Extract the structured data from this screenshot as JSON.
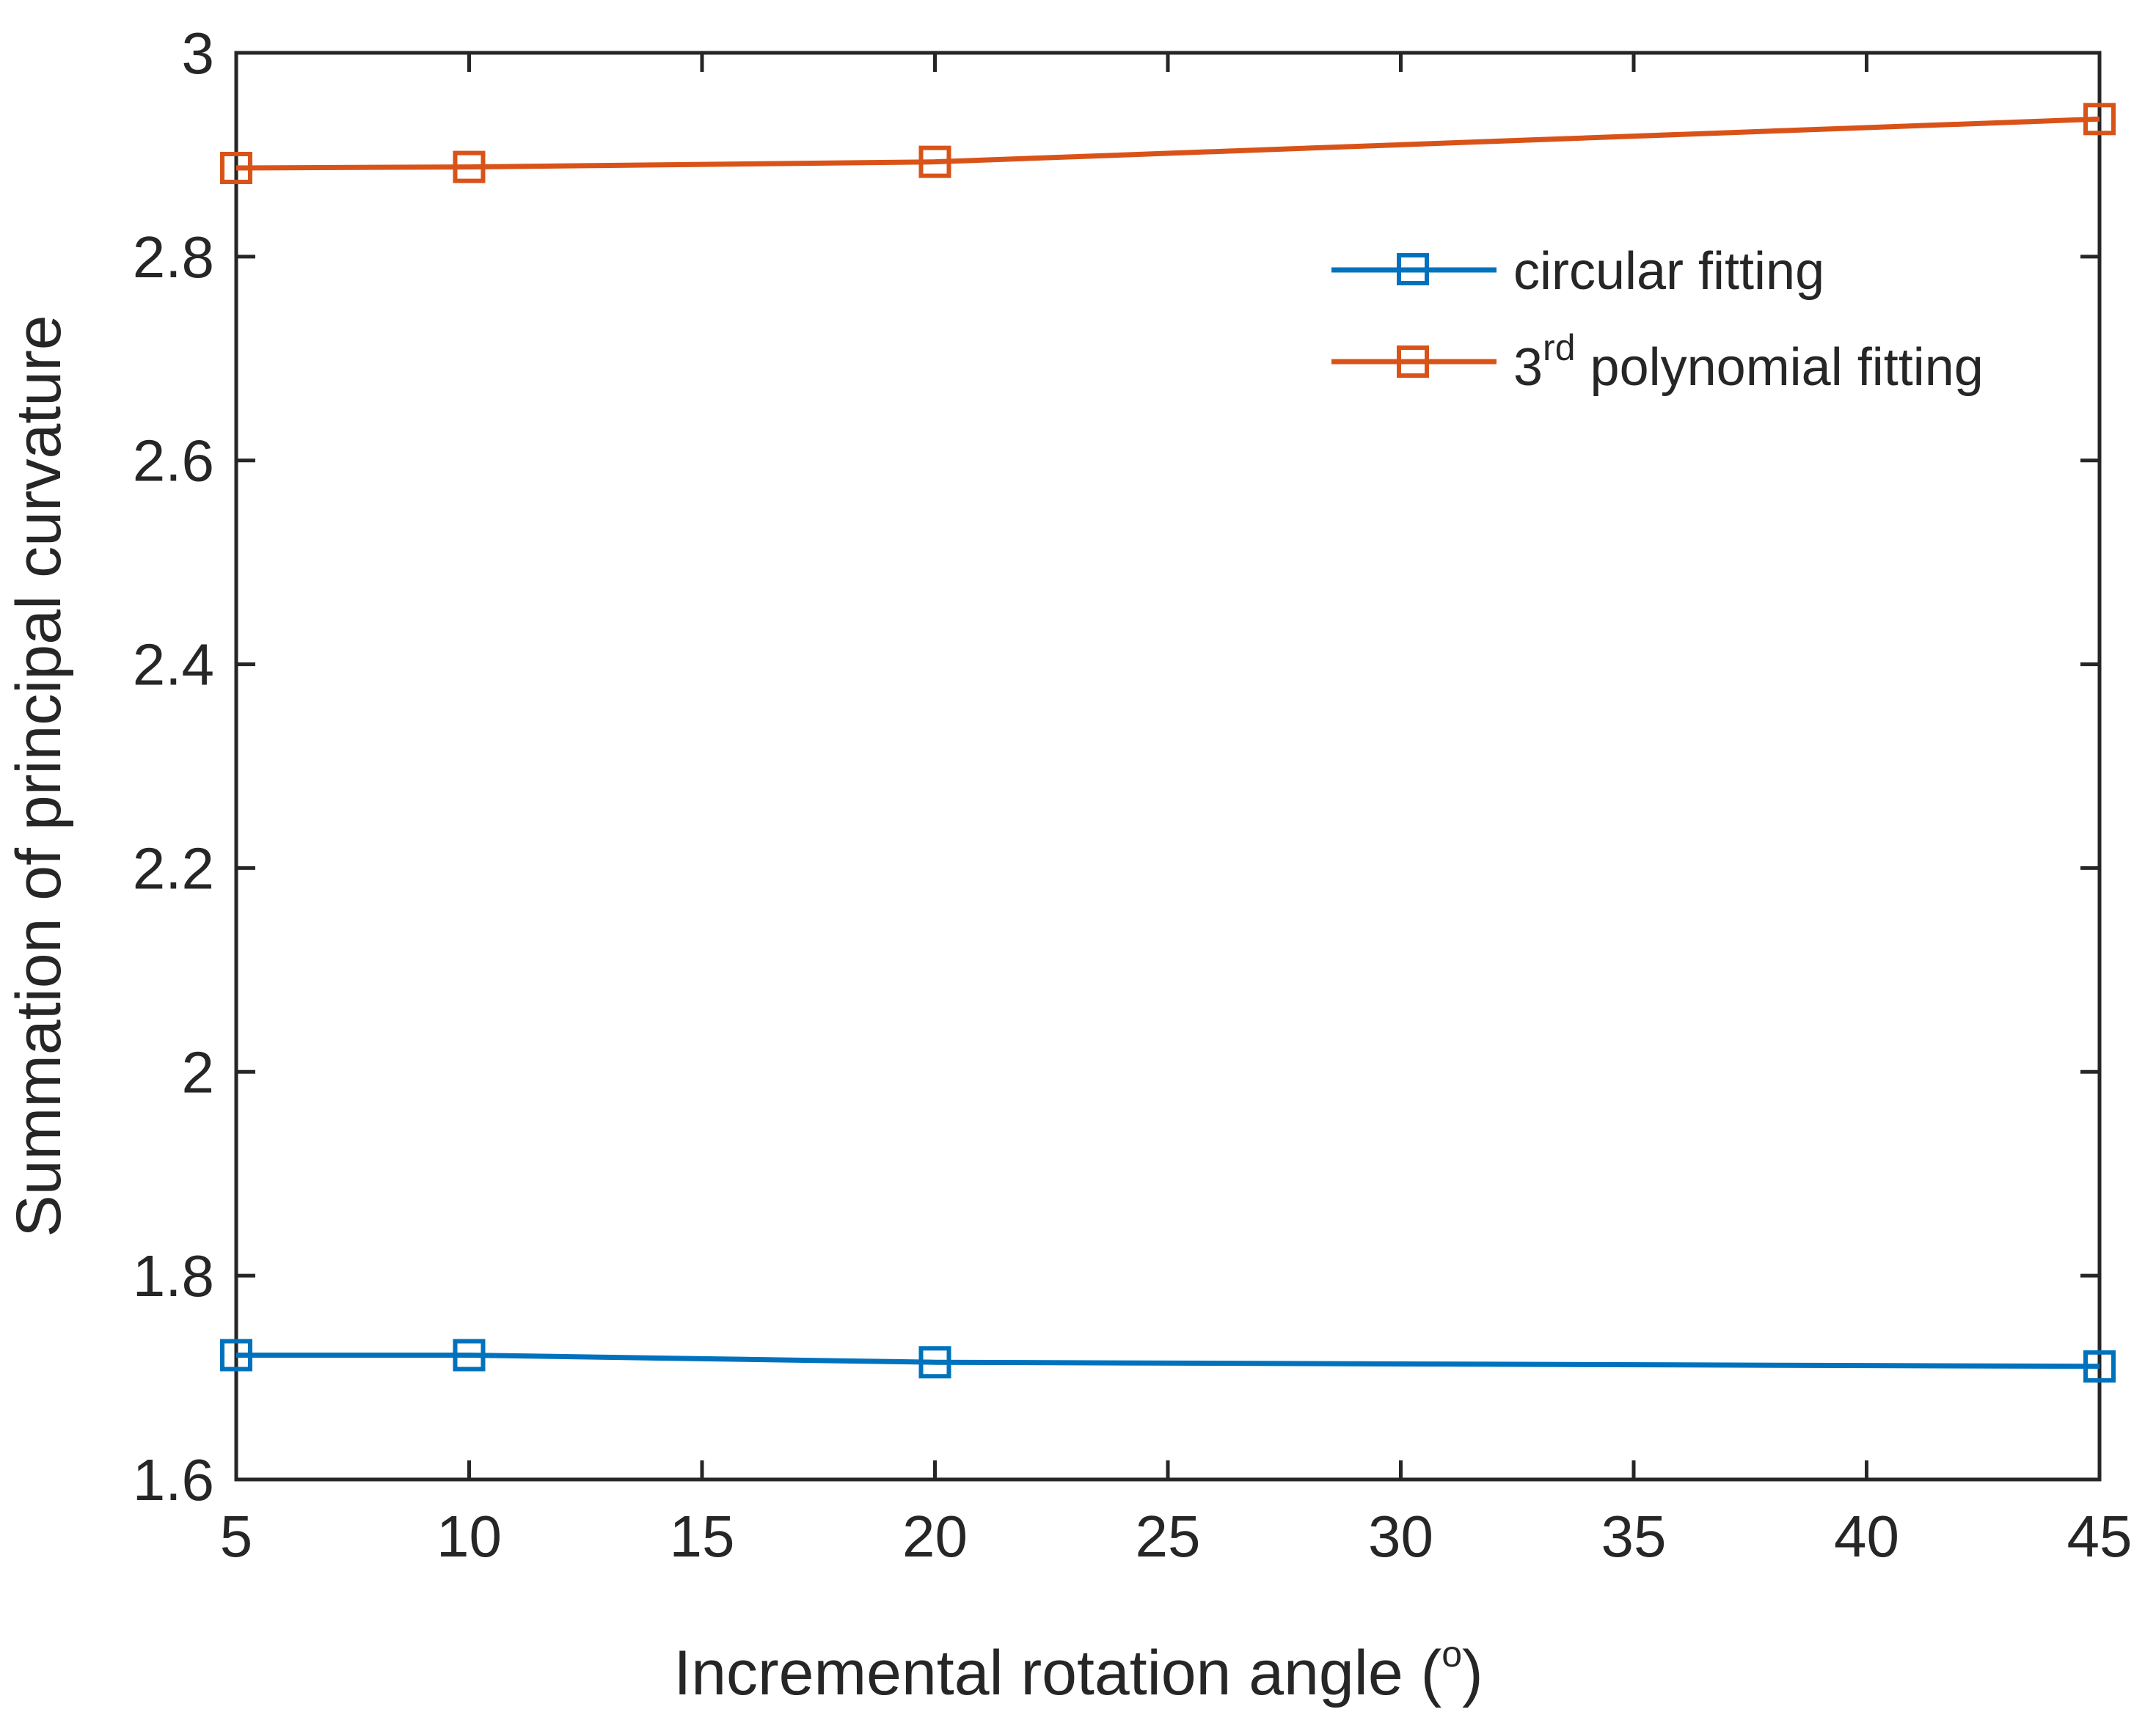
{
  "chart_data": {
    "type": "line",
    "title": "",
    "xlabel": "Incremental rotation angle (",
    "xlabel_sup": "o",
    "xlabel_end": ")",
    "ylabel": "Summation of principal curvature",
    "xlim": [
      5,
      45
    ],
    "ylim": [
      1.6,
      3.0
    ],
    "xticks": [
      5,
      10,
      15,
      20,
      25,
      30,
      35,
      40,
      45
    ],
    "xtick_labels": [
      "5",
      "10",
      "15",
      "20",
      "25",
      "30",
      "35",
      "40",
      "45"
    ],
    "yticks": [
      1.6,
      1.8,
      2.0,
      2.2,
      2.4,
      2.6,
      2.8,
      3.0
    ],
    "ytick_labels": [
      "1.6",
      "1.8",
      "2",
      "2.2",
      "2.4",
      "2.6",
      "2.8",
      "3"
    ],
    "x": [
      5,
      10,
      20,
      45
    ],
    "grid": false,
    "legend_position": "top-right",
    "series": [
      {
        "name": "circular fitting",
        "label_main": "circular fitting",
        "label_sup": "",
        "label_rest": "",
        "color": "#0072BD",
        "marker": "square",
        "values": [
          1.722,
          1.722,
          1.715,
          1.711
        ]
      },
      {
        "name": "3rd polynomial fitting",
        "label_main": "3",
        "label_sup": "rd",
        "label_rest": " polynomial fitting",
        "color": "#D95319",
        "marker": "square",
        "values": [
          2.887,
          2.888,
          2.893,
          2.935
        ]
      }
    ]
  }
}
